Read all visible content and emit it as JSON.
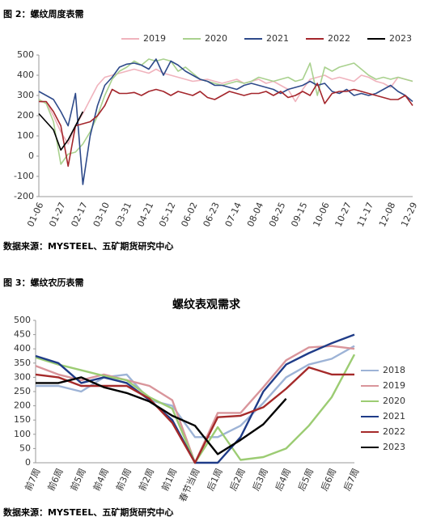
{
  "chart_data": [
    {
      "type": "line",
      "caption": "图 2：螺纹周度表需",
      "source": "数据来源：MYSTEEL、五矿期货研究中心",
      "legend": "top",
      "grid": false,
      "categories": [
        "01-06",
        null,
        null,
        "01-27",
        null,
        null,
        "02-17",
        null,
        null,
        "03-10",
        null,
        null,
        "03-31",
        null,
        null,
        "04-21",
        null,
        null,
        "05-12",
        null,
        null,
        "06-02",
        null,
        null,
        "06-23",
        null,
        null,
        "07-14",
        null,
        null,
        "08-04",
        null,
        null,
        "08-25",
        null,
        null,
        "09-15",
        null,
        null,
        "10-06",
        null,
        null,
        "10-27",
        null,
        null,
        "11-17",
        null,
        null,
        "12-08",
        null,
        null,
        "12-29"
      ],
      "ylim": [
        -200,
        500
      ],
      "yticks": [
        -200,
        -100,
        0,
        100,
        200,
        300,
        400,
        500
      ],
      "series": [
        {
          "name": "2019",
          "color": "#f0b3bd",
          "values": [
            270,
            265,
            200,
            120,
            60,
            150,
            210,
            280,
            350,
            390,
            400,
            410,
            420,
            430,
            420,
            410,
            430,
            410,
            400,
            390,
            380,
            370,
            375,
            380,
            370,
            360,
            370,
            380,
            360,
            370,
            380,
            360,
            370,
            350,
            330,
            270,
            330,
            380,
            390,
            400,
            380,
            390,
            380,
            370,
            400,
            390,
            370,
            360,
            340,
            390,
            380,
            370
          ]
        },
        {
          "name": "2020",
          "color": "#a9d18e",
          "values": [
            280,
            260,
            170,
            -40,
            10,
            20,
            60,
            120,
            200,
            300,
            380,
            420,
            440,
            470,
            450,
            480,
            470,
            480,
            470,
            420,
            440,
            410,
            380,
            370,
            360,
            350,
            360,
            370,
            360,
            370,
            390,
            380,
            370,
            380,
            390,
            370,
            380,
            460,
            300,
            440,
            420,
            440,
            450,
            460,
            430,
            400,
            380,
            390,
            380,
            390,
            380,
            370
          ]
        },
        {
          "name": "2021",
          "color": "#2e4a8a",
          "values": [
            320,
            300,
            280,
            220,
            150,
            310,
            -140,
            100,
            250,
            350,
            390,
            440,
            455,
            460,
            450,
            430,
            480,
            400,
            470,
            450,
            420,
            400,
            380,
            370,
            350,
            350,
            340,
            330,
            350,
            360,
            350,
            340,
            330,
            310,
            330,
            340,
            350,
            370,
            350,
            360,
            320,
            310,
            330,
            300,
            310,
            300,
            310,
            330,
            350,
            320,
            300,
            270
          ]
        },
        {
          "name": "2022",
          "color": "#a4262c",
          "values": [
            270,
            270,
            220,
            150,
            -50,
            150,
            160,
            170,
            200,
            250,
            330,
            310,
            310,
            315,
            300,
            320,
            330,
            320,
            300,
            320,
            310,
            300,
            320,
            290,
            280,
            300,
            320,
            310,
            300,
            310,
            310,
            320,
            300,
            320,
            290,
            300,
            320,
            300,
            360,
            260,
            310,
            320,
            320,
            330,
            320,
            310,
            300,
            290,
            280,
            280,
            300,
            250
          ]
        },
        {
          "name": "2023",
          "color": "#000000",
          "values": [
            210,
            170,
            130,
            30,
            80,
            150,
            220,
            null,
            null,
            null,
            null,
            null,
            null,
            null,
            null,
            null,
            null,
            null,
            null,
            null,
            null,
            null,
            null,
            null,
            null,
            null,
            null,
            null,
            null,
            null,
            null,
            null,
            null,
            null,
            null,
            null,
            null,
            null,
            null,
            null,
            null,
            null,
            null,
            null,
            null,
            null,
            null,
            null,
            null,
            null,
            null,
            null
          ]
        }
      ]
    },
    {
      "type": "line",
      "caption": "图 3：螺纹农历表需",
      "title": "螺纹表观需求",
      "source": "数据来源：MYSTEEL、五矿期货研究中心",
      "legend": "right",
      "grid": false,
      "categories": [
        "前7周",
        "前6周",
        "前5周",
        "前4周",
        "前3周",
        "前2周",
        "前1周",
        "春节当周",
        "后1周",
        "后2周",
        "后3周",
        "后4周",
        "后5周",
        "后6周",
        "后7周"
      ],
      "ylim": [
        0,
        500
      ],
      "yticks": [
        0,
        50,
        100,
        150,
        200,
        250,
        300,
        350,
        400,
        450,
        500
      ],
      "series": [
        {
          "name": "2018",
          "color": "#9db3d6",
          "values": [
            270,
            270,
            250,
            300,
            310,
            220,
            200,
            90,
            90,
            130,
            210,
            300,
            345,
            365,
            410
          ]
        },
        {
          "name": "2019",
          "color": "#d9959b",
          "values": [
            340,
            310,
            290,
            310,
            290,
            270,
            220,
            0,
            175,
            175,
            265,
            360,
            405,
            410,
            400
          ]
        },
        {
          "name": "2020",
          "color": "#9ccc73",
          "values": [
            370,
            345,
            325,
            305,
            290,
            230,
            190,
            0,
            125,
            10,
            20,
            50,
            130,
            230,
            380
          ]
        },
        {
          "name": "2021",
          "color": "#1f3c88",
          "values": [
            375,
            350,
            280,
            300,
            280,
            220,
            150,
            0,
            0,
            90,
            250,
            345,
            385,
            420,
            450
          ]
        },
        {
          "name": "2022",
          "color": "#a52a2a",
          "values": [
            310,
            300,
            270,
            270,
            270,
            225,
            140,
            0,
            160,
            165,
            195,
            260,
            335,
            310,
            310
          ]
        },
        {
          "name": "2023",
          "color": "#000000",
          "values": [
            280,
            280,
            300,
            265,
            245,
            215,
            165,
            130,
            30,
            80,
            135,
            225,
            null,
            null,
            null
          ]
        }
      ]
    }
  ]
}
